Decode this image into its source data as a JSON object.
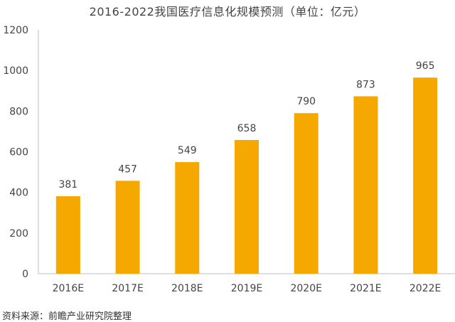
{
  "chart_data": {
    "type": "bar",
    "title": "2016-2022我国医疗信息化规模预测（单位：亿元）",
    "categories": [
      "2016E",
      "2017E",
      "2018E",
      "2019E",
      "2020E",
      "2021E",
      "2022E"
    ],
    "values": [
      381,
      457,
      549,
      658,
      790,
      873,
      965
    ],
    "ylim": [
      0,
      1200
    ],
    "yticks": [
      0,
      200,
      400,
      600,
      800,
      1000,
      1200
    ],
    "xlabel": "",
    "ylabel": "",
    "grid": false,
    "legend": "none",
    "bar_color": "#F5A800"
  },
  "source": "资料来源：前瞻产业研究院整理"
}
